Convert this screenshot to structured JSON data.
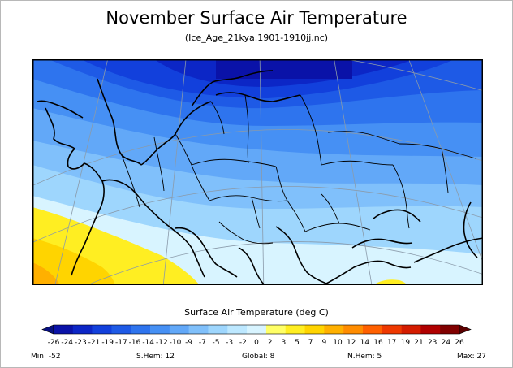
{
  "title": "November Surface Air Temperature",
  "subtitle": "(Ice_Age_21kya.1901-1910jj.nc)",
  "colorbar": {
    "title": "Surface Air Temperature (deg C)",
    "ticks": [
      "-26",
      "-24",
      "-23",
      "-21",
      "-19",
      "-17",
      "-16",
      "-14",
      "-12",
      "-10",
      "-9",
      "-7",
      "-5",
      "-3",
      "-2",
      "0",
      "2",
      "3",
      "5",
      "7",
      "9",
      "10",
      "12",
      "14",
      "16",
      "17",
      "19",
      "21",
      "23",
      "24",
      "26"
    ],
    "colors": [
      "#0a12a8",
      "#0c26c6",
      "#1240dc",
      "#1e5ae6",
      "#2e74ee",
      "#4690f4",
      "#62a8f8",
      "#80c0fb",
      "#9ed6fd",
      "#bde8ff",
      "#d8f4ff",
      "#ffff66",
      "#ffee22",
      "#ffd400",
      "#ffb000",
      "#ff8c00",
      "#ff6000",
      "#ee3800",
      "#d41c00",
      "#b00000",
      "#800000"
    ],
    "left_arrow_color": "#071080",
    "right_arrow_color": "#5a0000"
  },
  "stats": {
    "min": "Min: -52",
    "shem": "S.Hem: 12",
    "global": "Global: 8",
    "nhem": "N.Hem: 5",
    "max": "Max: 27"
  }
}
